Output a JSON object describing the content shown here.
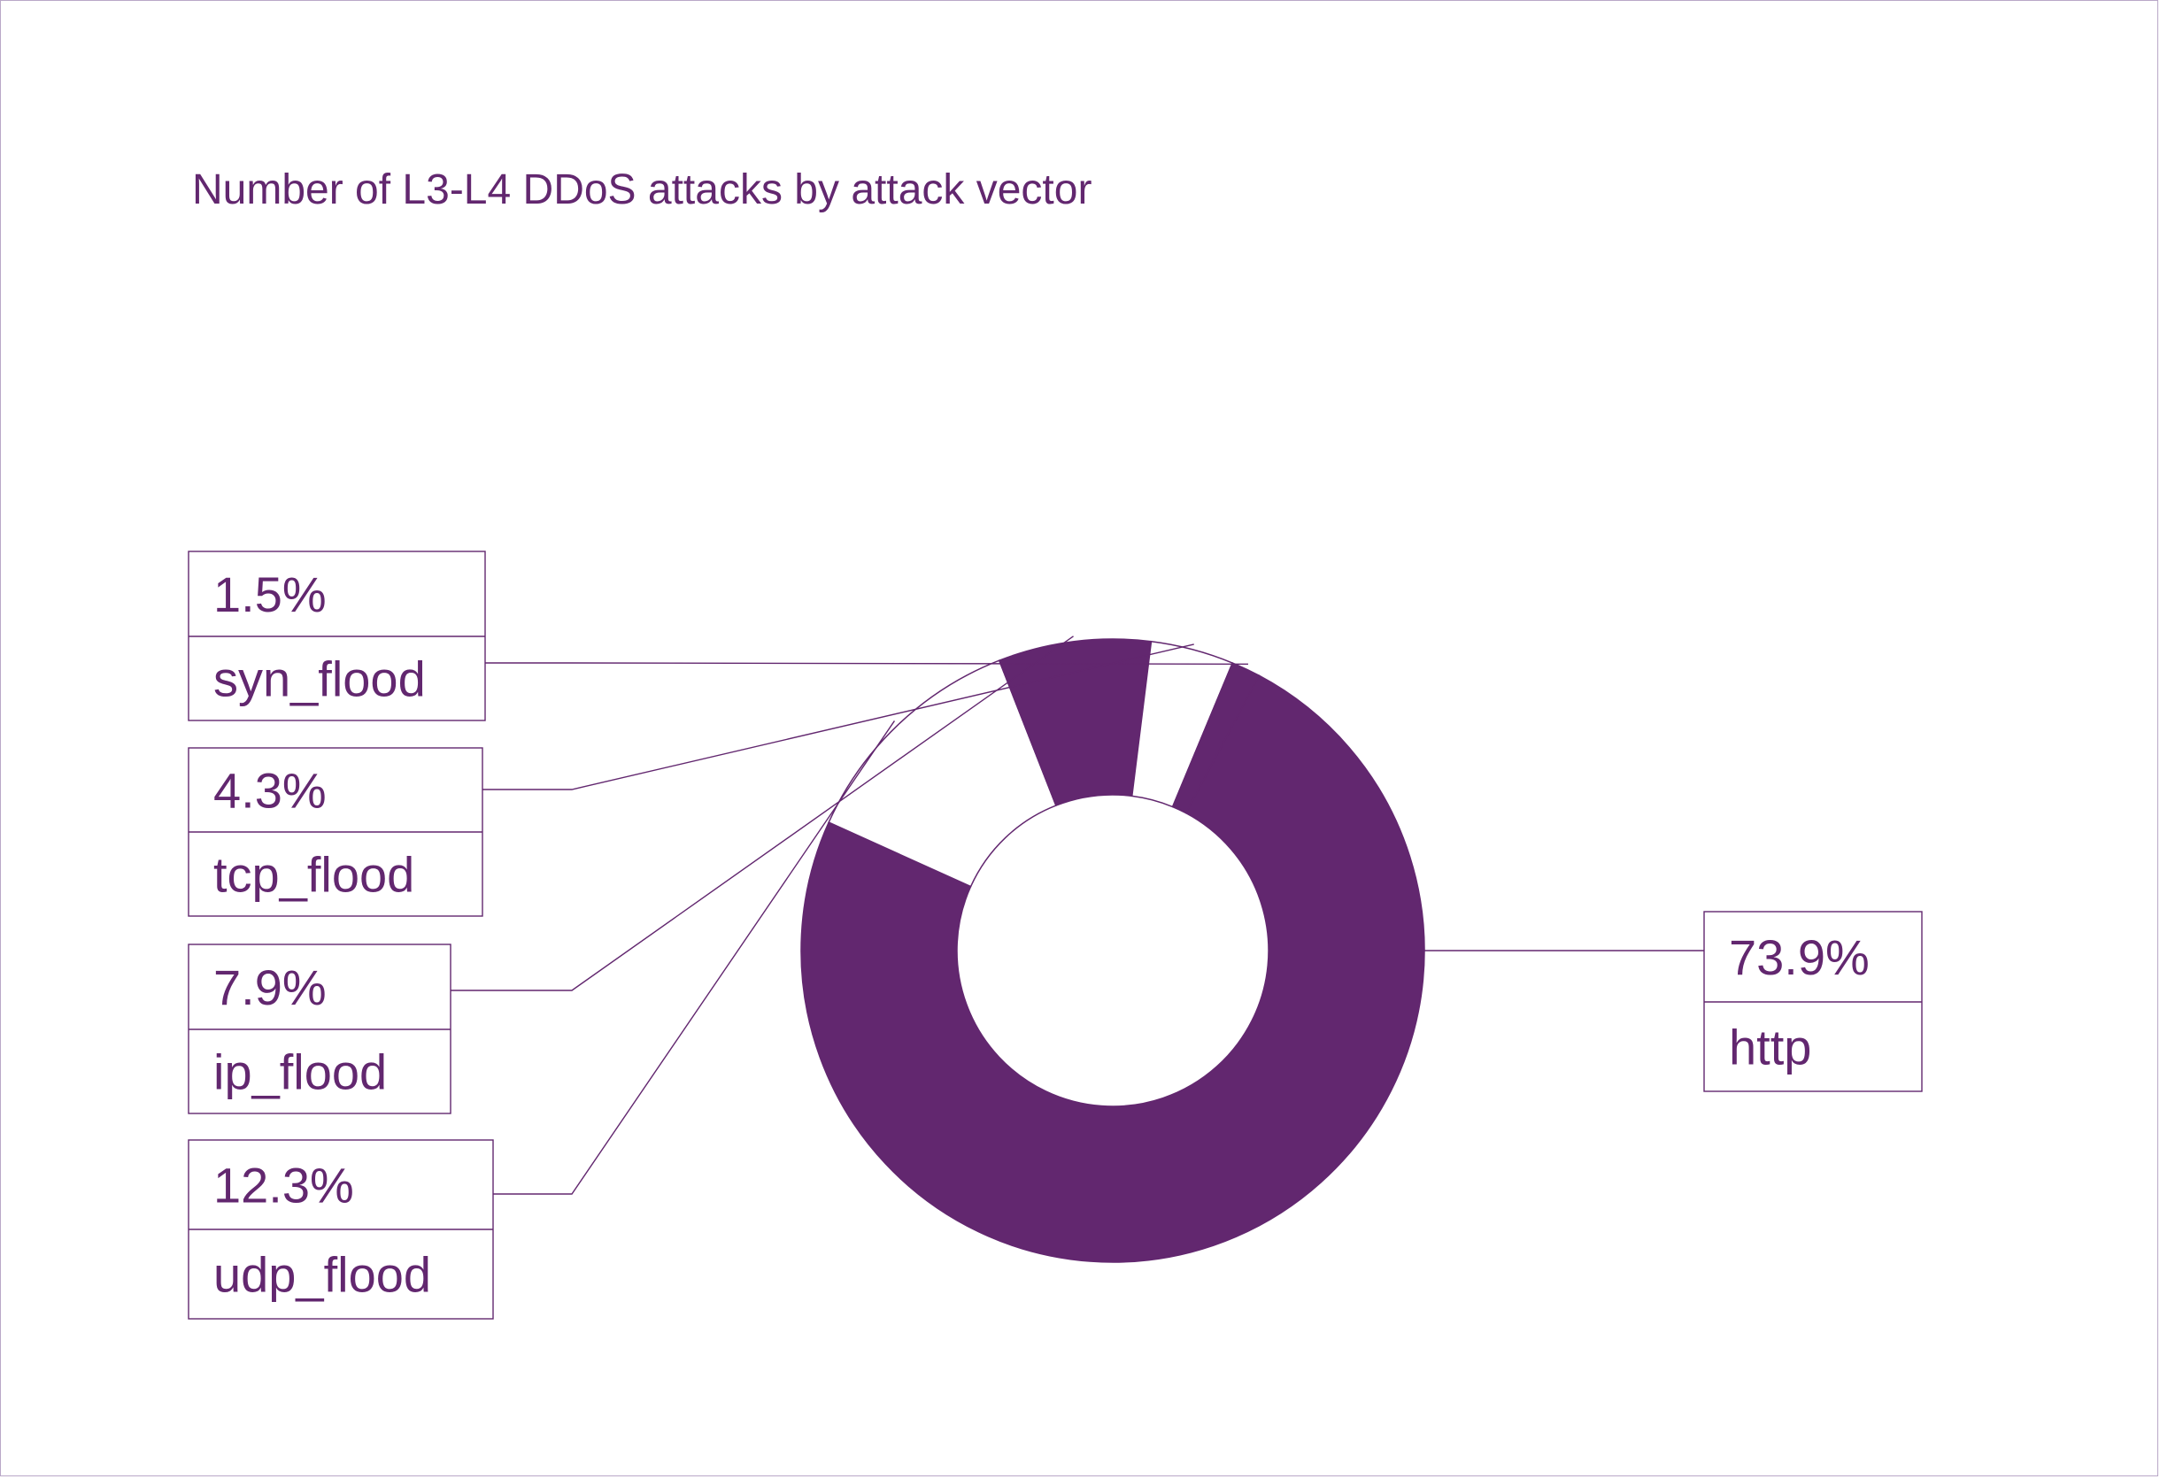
{
  "chart_data": {
    "type": "pie",
    "variant": "donut",
    "title": "Number of L3-L4 DDoS attacks by attack vector",
    "slices": [
      {
        "label": "http",
        "value": 73.9,
        "value_label": "73.9%",
        "filled": true
      },
      {
        "label": "udp_flood",
        "value": 12.3,
        "value_label": "12.3%",
        "filled": false
      },
      {
        "label": "ip_flood",
        "value": 7.9,
        "value_label": "7.9%",
        "filled": true
      },
      {
        "label": "tcp_flood",
        "value": 4.3,
        "value_label": "4.3%",
        "filled": false
      },
      {
        "label": "syn_flood",
        "value": 1.5,
        "value_label": "1.5%",
        "filled": true
      }
    ],
    "colors": {
      "accent": "#62276f",
      "background": "#ffffff",
      "frame": "#b9a7c7"
    }
  }
}
